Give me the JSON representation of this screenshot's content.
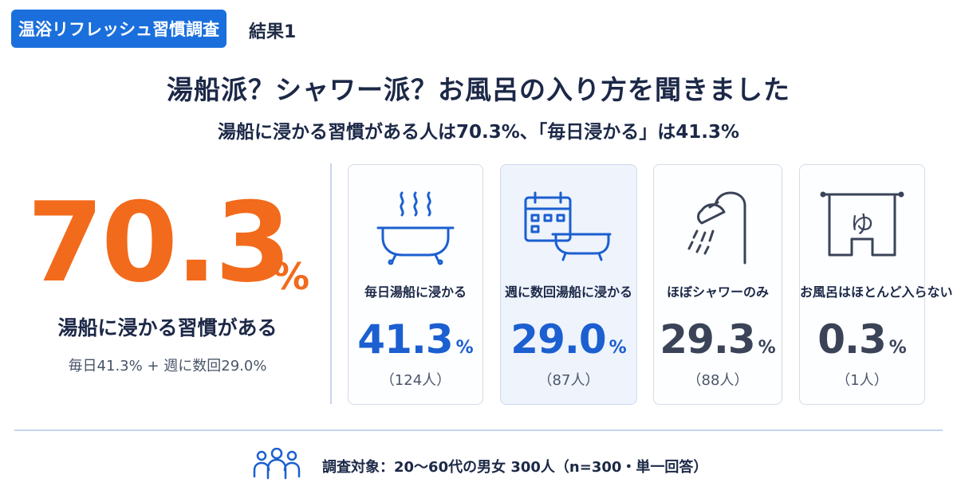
{
  "header": {
    "tag_label": "温浴リフレッシュ習慣調査",
    "section_label": "結果1"
  },
  "title": "湯船派？シャワー派？お風呂の入り方を聞きました",
  "subtitle": "湯船に浸かる習慣がある人は70.3%、「毎日浸かる」は41.3%",
  "highlight": {
    "value": "70.3",
    "unit": "%",
    "label": "湯船に浸かる習慣がある",
    "breakdown": "毎日41.3% + 週に数回29.0%",
    "color": "#f26a1b"
  },
  "cards": [
    {
      "label": "毎日湯船に浸かる",
      "value": "41.3",
      "unit": "%",
      "count": "（124人）",
      "icon": "bathtub-steam-icon",
      "color": "#1b5fd0"
    },
    {
      "label": "週に数回湯船に浸かる",
      "value": "29.0",
      "unit": "%",
      "count": "（87人）",
      "icon": "calendar-bathtub-icon",
      "color": "#1b5fd0"
    },
    {
      "label": "ほぼシャワーのみ",
      "value": "29.3",
      "unit": "%",
      "count": "（88人）",
      "icon": "shower-icon",
      "color": "#3a4358"
    },
    {
      "label": "お風呂はほとんど入らない",
      "value": "0.3",
      "unit": "%",
      "count": "（1人）",
      "icon": "bath-curtain-icon",
      "color": "#3a4358"
    }
  ],
  "footer": {
    "icon": "people-icon",
    "text": "調査対象：20～60代の男女 300人（n=300・単一回答）"
  }
}
